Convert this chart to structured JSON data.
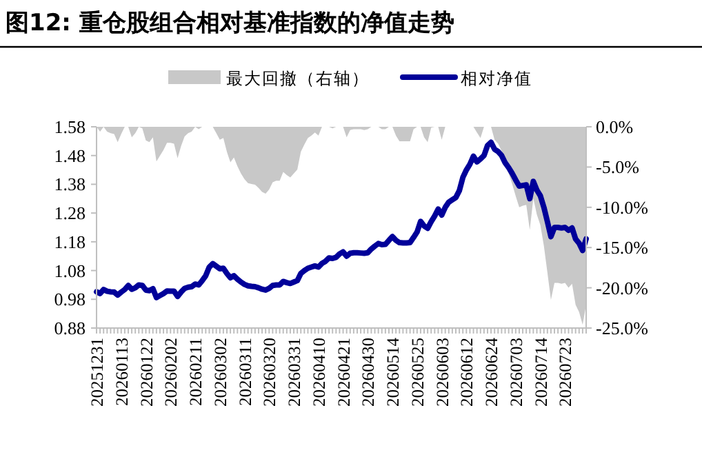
{
  "chart_data": {
    "type": "line",
    "title": "图12:  重仓股组合相对基准指数的净值走势",
    "categories": [
      "20251231",
      null,
      null,
      null,
      null,
      null,
      null,
      "20260113",
      null,
      null,
      null,
      null,
      null,
      null,
      "20260122",
      null,
      null,
      null,
      null,
      null,
      null,
      "20260202",
      null,
      null,
      null,
      null,
      null,
      null,
      "20260211",
      null,
      null,
      null,
      null,
      null,
      null,
      "20260302",
      null,
      null,
      null,
      null,
      null,
      null,
      "20260311",
      null,
      null,
      null,
      null,
      null,
      null,
      "20260320",
      null,
      null,
      null,
      null,
      null,
      null,
      "20260331",
      null,
      null,
      null,
      null,
      null,
      null,
      "20260410",
      null,
      null,
      null,
      null,
      null,
      null,
      "20260421",
      null,
      null,
      null,
      null,
      null,
      null,
      "20260430",
      null,
      null,
      null,
      null,
      null,
      null,
      "20260514",
      null,
      null,
      null,
      null,
      null,
      null,
      "20260525",
      null,
      null,
      null,
      null,
      null,
      null,
      "20260603",
      null,
      null,
      null,
      null,
      null,
      null,
      "20260612",
      null,
      null,
      null,
      null,
      null,
      null,
      "20260624",
      null,
      null,
      null,
      null,
      null,
      null,
      "20260703",
      null,
      null,
      null,
      null,
      null,
      null,
      "20260714",
      null,
      null,
      null,
      null,
      null,
      null,
      "20260723",
      null,
      null,
      null,
      null,
      null,
      null
    ],
    "series": [
      {
        "name": "最大回撤（右轴）",
        "type": "area",
        "axis": "y2",
        "color": "#c8c8c8",
        "values": [
          0,
          -0.6,
          0,
          -0.6,
          -0.8,
          -0.9,
          -1.9,
          -0.9,
          0,
          0,
          -1.3,
          -0.8,
          0,
          -0.2,
          -1.7,
          -1.9,
          -1.3,
          -4.3,
          -3.6,
          -2.9,
          -2.0,
          -2.0,
          -2.1,
          -3.9,
          -2.4,
          -1.2,
          -0.8,
          -0.6,
          0,
          -0.3,
          0,
          0,
          0,
          0,
          -0.8,
          -1.6,
          -1.4,
          -3.1,
          -4.4,
          -3.8,
          -4.9,
          -5.8,
          -6.5,
          -7.0,
          -7.1,
          -7.2,
          -7.6,
          -8.1,
          -8.3,
          -7.8,
          -6.9,
          -6.7,
          -6.7,
          -5.6,
          -6.0,
          -6.3,
          -5.8,
          -5.3,
          -3.1,
          -2.2,
          -1.4,
          -1.1,
          -0.7,
          -1.1,
          0,
          0,
          0,
          -0.2,
          0,
          0,
          0,
          -1.3,
          -0.4,
          -0.3,
          -0.3,
          -0.3,
          -0.4,
          -0.3,
          0,
          0,
          0,
          -0.3,
          -0.3,
          0,
          0,
          -1.1,
          -1.8,
          -1.8,
          -1.8,
          -1.8,
          -0.3,
          0,
          0,
          -1.3,
          -1.9,
          -0.1,
          0,
          0,
          -1.6,
          0,
          0,
          0,
          0,
          0,
          0,
          0,
          0,
          0,
          -0.7,
          -1.4,
          0,
          0,
          0,
          -1.6,
          -2.1,
          -3.0,
          -4.7,
          -5.8,
          -7.1,
          -8.6,
          -10.0,
          -9.8,
          -9.7,
          -12.8,
          -8.9,
          -10.9,
          -12.2,
          -14.8,
          -18.1,
          -21.5,
          -19.4,
          -19.4,
          -19.5,
          -19.4,
          -20.0,
          -19.5,
          -22.1,
          -23.0,
          -24.6,
          -22.1
        ]
      },
      {
        "name": "相对净值",
        "color": "#000099",
        "values": [
          1.006,
          1.0,
          1.014,
          1.008,
          1.006,
          1.005,
          0.995,
          1.005,
          1.014,
          1.028,
          1.015,
          1.02,
          1.03,
          1.028,
          1.012,
          1.01,
          1.017,
          0.986,
          0.993,
          1.0,
          1.009,
          1.008,
          1.008,
          0.99,
          1.005,
          1.018,
          1.022,
          1.024,
          1.033,
          1.03,
          1.045,
          1.062,
          1.092,
          1.104,
          1.095,
          1.086,
          1.088,
          1.07,
          1.055,
          1.062,
          1.05,
          1.04,
          1.032,
          1.027,
          1.025,
          1.024,
          1.02,
          1.015,
          1.012,
          1.018,
          1.028,
          1.03,
          1.03,
          1.042,
          1.038,
          1.035,
          1.04,
          1.045,
          1.07,
          1.08,
          1.088,
          1.092,
          1.096,
          1.092,
          1.105,
          1.112,
          1.124,
          1.122,
          1.126,
          1.138,
          1.145,
          1.13,
          1.14,
          1.142,
          1.142,
          1.141,
          1.14,
          1.142,
          1.155,
          1.165,
          1.174,
          1.17,
          1.171,
          1.185,
          1.198,
          1.185,
          1.177,
          1.176,
          1.176,
          1.177,
          1.195,
          1.214,
          1.251,
          1.235,
          1.227,
          1.25,
          1.27,
          1.294,
          1.273,
          1.3,
          1.318,
          1.326,
          1.334,
          1.358,
          1.404,
          1.43,
          1.45,
          1.478,
          1.458,
          1.468,
          1.48,
          1.515,
          1.526,
          1.502,
          1.494,
          1.48,
          1.455,
          1.438,
          1.418,
          1.395,
          1.374,
          1.376,
          1.378,
          1.33,
          1.39,
          1.36,
          1.34,
          1.3,
          1.25,
          1.198,
          1.23,
          1.23,
          1.228,
          1.23,
          1.22,
          1.228,
          1.19,
          1.175,
          1.15,
          1.19
        ]
      }
    ],
    "ylim": [
      0.88,
      1.58
    ],
    "yticks": [
      0.88,
      0.98,
      1.08,
      1.18,
      1.28,
      1.38,
      1.48,
      1.58
    ],
    "y2lim": [
      -25,
      0
    ],
    "y2ticks": [
      {
        "value": 0,
        "label": "0.0%"
      },
      {
        "value": -5,
        "label": "-5.0%"
      },
      {
        "value": -10,
        "label": "-10.0%"
      },
      {
        "value": -15,
        "label": "-15.0%"
      },
      {
        "value": -20,
        "label": "-20.0%"
      },
      {
        "value": -25,
        "label": "-25.0%"
      }
    ],
    "legend": "top",
    "grid": false
  }
}
